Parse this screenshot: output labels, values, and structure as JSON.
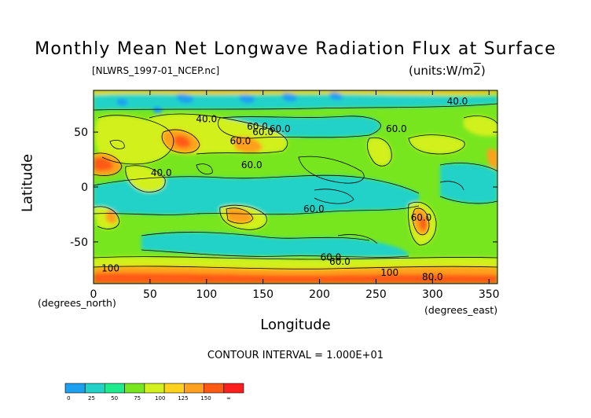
{
  "header": {
    "title": "Monthly Mean Net Longwave Radiation Flux at Surface",
    "file": "[NLWRS_1997-01_NCEP.nc]",
    "units": "(units:W/m^2)"
  },
  "map": {
    "x_unit": "(degrees_north)",
    "y_unit": "(degrees_east)",
    "xlabel": "Longitude",
    "ylabel": "Latitude",
    "x_ticks": [
      "0",
      "50",
      "100",
      "150",
      "200",
      "250",
      "300",
      "350"
    ],
    "y_ticks": [
      "50",
      "0",
      "-50"
    ],
    "contour_labels": [
      "40.0",
      "40.0",
      "60.0",
      "60.0",
      "60.0",
      "60.0",
      "60.0",
      "40.0",
      "60.0",
      "60.0",
      "60.0",
      "60.0",
      "100",
      "100",
      "60.0",
      "80.0"
    ],
    "contour_interval": "CONTOUR INTERVAL = 1.000E+01"
  },
  "colorbar": {
    "labels": [
      "0",
      "25",
      "50",
      "75",
      "100",
      "125",
      "150",
      "∞"
    ],
    "colors": [
      "#1ea0f0",
      "#22d2c8",
      "#1eeb8c",
      "#78e61e",
      "#d2f01e",
      "#ffd21e",
      "#ffa01e",
      "#ff5a14",
      "#ff1e1e"
    ]
  }
}
